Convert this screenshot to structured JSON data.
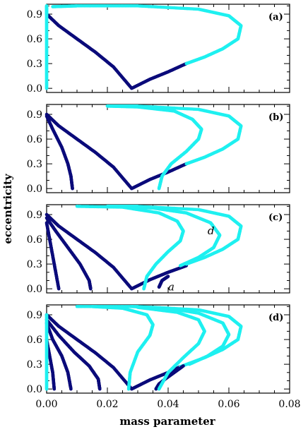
{
  "chart_data": {
    "type": "scatter",
    "xlabel": "mass parameter",
    "ylabel": "eccentricity",
    "xlim": [
      0,
      0.08
    ],
    "ylim": [
      -0.05,
      1.02
    ],
    "x_ticks": [
      "0.00",
      "0.02",
      "0.04",
      "0.06",
      "0.08"
    ],
    "y_ticks": [
      "0.0",
      "0.3",
      "0.6",
      "0.9"
    ],
    "colors": {
      "stable": "#0b0b7a",
      "unstable": "#1ff0f0"
    },
    "panels": [
      {
        "label": "(a)",
        "series": [
          {
            "color": "stable",
            "points": [
              [
                0.0,
                0.9
              ],
              [
                0.004,
                0.76
              ],
              [
                0.01,
                0.6
              ],
              [
                0.016,
                0.44
              ],
              [
                0.022,
                0.26
              ],
              [
                0.028,
                0.0
              ],
              [
                0.034,
                0.11
              ],
              [
                0.04,
                0.2
              ],
              [
                0.046,
                0.3
              ]
            ]
          },
          {
            "color": "unstable",
            "points": [
              [
                0.046,
                0.3
              ],
              [
                0.052,
                0.38
              ],
              [
                0.058,
                0.48
              ],
              [
                0.063,
                0.6
              ],
              [
                0.064,
                0.76
              ],
              [
                0.06,
                0.88
              ],
              [
                0.05,
                0.96
              ],
              [
                0.03,
                1.0
              ],
              [
                0.01,
                1.0
              ],
              [
                0.002,
                0.99
              ]
            ]
          },
          {
            "color": "unstable",
            "points": [
              [
                0.0,
                0.0
              ],
              [
                0.0,
                0.3
              ],
              [
                0.0,
                0.6
              ],
              [
                0.0,
                0.9
              ],
              [
                0.0,
                1.0
              ]
            ]
          }
        ],
        "annotations": []
      },
      {
        "label": "(b)",
        "series": [
          {
            "color": "stable",
            "points": [
              [
                0.0,
                0.9
              ],
              [
                0.004,
                0.76
              ],
              [
                0.01,
                0.6
              ],
              [
                0.016,
                0.44
              ],
              [
                0.022,
                0.26
              ],
              [
                0.028,
                0.0
              ],
              [
                0.034,
                0.11
              ],
              [
                0.04,
                0.2
              ],
              [
                0.046,
                0.3
              ]
            ]
          },
          {
            "color": "unstable",
            "points": [
              [
                0.046,
                0.3
              ],
              [
                0.052,
                0.38
              ],
              [
                0.058,
                0.48
              ],
              [
                0.063,
                0.6
              ],
              [
                0.064,
                0.76
              ],
              [
                0.06,
                0.88
              ],
              [
                0.05,
                0.96
              ],
              [
                0.03,
                1.0
              ],
              [
                0.02,
                1.0
              ]
            ]
          },
          {
            "color": "stable",
            "points": [
              [
                0.0,
                0.88
              ],
              [
                0.002,
                0.72
              ],
              [
                0.005,
                0.5
              ],
              [
                0.007,
                0.3
              ],
              [
                0.008,
                0.15
              ],
              [
                0.0085,
                0.0
              ]
            ]
          },
          {
            "color": "unstable",
            "points": [
              [
                0.037,
                0.0
              ],
              [
                0.038,
                0.15
              ],
              [
                0.041,
                0.3
              ],
              [
                0.046,
                0.45
              ],
              [
                0.05,
                0.6
              ],
              [
                0.051,
                0.72
              ],
              [
                0.048,
                0.84
              ],
              [
                0.042,
                0.94
              ],
              [
                0.03,
                0.99
              ],
              [
                0.02,
                1.0
              ]
            ]
          }
        ],
        "annotations": []
      },
      {
        "label": "(c)",
        "series": [
          {
            "color": "stable",
            "points": [
              [
                0.0,
                0.9
              ],
              [
                0.004,
                0.76
              ],
              [
                0.01,
                0.6
              ],
              [
                0.016,
                0.44
              ],
              [
                0.022,
                0.26
              ],
              [
                0.028,
                0.0
              ],
              [
                0.034,
                0.11
              ],
              [
                0.04,
                0.2
              ],
              [
                0.046,
                0.28
              ]
            ]
          },
          {
            "color": "unstable",
            "points": [
              [
                0.046,
                0.3
              ],
              [
                0.052,
                0.38
              ],
              [
                0.058,
                0.48
              ],
              [
                0.063,
                0.6
              ],
              [
                0.064,
                0.76
              ],
              [
                0.06,
                0.88
              ],
              [
                0.05,
                0.96
              ],
              [
                0.03,
                1.0
              ],
              [
                0.02,
                1.0
              ]
            ]
          },
          {
            "color": "stable",
            "points": [
              [
                0.0,
                0.86
              ],
              [
                0.003,
                0.7
              ],
              [
                0.007,
                0.5
              ],
              [
                0.011,
                0.3
              ],
              [
                0.014,
                0.1
              ],
              [
                0.0145,
                0.0
              ]
            ]
          },
          {
            "color": "stable",
            "points": [
              [
                0.0,
                0.8
              ],
              [
                0.001,
                0.6
              ],
              [
                0.002,
                0.4
              ],
              [
                0.003,
                0.2
              ],
              [
                0.004,
                0.0
              ]
            ]
          },
          {
            "color": "unstable",
            "points": [
              [
                0.032,
                0.0
              ],
              [
                0.033,
                0.15
              ],
              [
                0.036,
                0.3
              ],
              [
                0.04,
                0.45
              ],
              [
                0.044,
                0.58
              ],
              [
                0.045,
                0.7
              ],
              [
                0.043,
                0.82
              ],
              [
                0.037,
                0.92
              ],
              [
                0.025,
                0.99
              ],
              [
                0.01,
                1.0
              ]
            ]
          },
          {
            "color": "unstable",
            "points": [
              [
                0.044,
                0.28
              ],
              [
                0.05,
                0.38
              ],
              [
                0.055,
                0.5
              ],
              [
                0.057,
                0.65
              ],
              [
                0.054,
                0.8
              ],
              [
                0.046,
                0.92
              ],
              [
                0.035,
                0.98
              ],
              [
                0.02,
                1.0
              ]
            ]
          },
          {
            "color": "stable",
            "points": [
              [
                0.037,
                0.02
              ],
              [
                0.038,
                0.1
              ],
              [
                0.04,
                0.15
              ]
            ]
          }
        ],
        "annotations": [
          {
            "text": "d",
            "x": 0.053,
            "y": 0.66
          },
          {
            "text": "a",
            "x": 0.04,
            "y": -0.02
          }
        ]
      },
      {
        "label": "(d)",
        "series": [
          {
            "color": "stable",
            "points": [
              [
                0.0,
                0.9
              ],
              [
                0.004,
                0.76
              ],
              [
                0.01,
                0.6
              ],
              [
                0.016,
                0.44
              ],
              [
                0.022,
                0.26
              ],
              [
                0.028,
                0.0
              ],
              [
                0.034,
                0.11
              ],
              [
                0.04,
                0.2
              ],
              [
                0.044,
                0.27
              ]
            ]
          },
          {
            "color": "unstable",
            "points": [
              [
                0.044,
                0.27
              ],
              [
                0.052,
                0.38
              ],
              [
                0.058,
                0.48
              ],
              [
                0.063,
                0.6
              ],
              [
                0.064,
                0.76
              ],
              [
                0.06,
                0.88
              ],
              [
                0.05,
                0.96
              ],
              [
                0.03,
                1.0
              ],
              [
                0.01,
                1.0
              ]
            ]
          },
          {
            "color": "stable",
            "points": [
              [
                0.0,
                0.84
              ],
              [
                0.004,
                0.65
              ],
              [
                0.009,
                0.45
              ],
              [
                0.014,
                0.28
              ],
              [
                0.017,
                0.12
              ],
              [
                0.0175,
                0.0
              ]
            ]
          },
          {
            "color": "stable",
            "points": [
              [
                0.0,
                0.8
              ],
              [
                0.002,
                0.6
              ],
              [
                0.005,
                0.4
              ],
              [
                0.007,
                0.2
              ],
              [
                0.008,
                0.0
              ]
            ]
          },
          {
            "color": "stable",
            "points": [
              [
                0.0,
                0.6
              ],
              [
                0.001,
                0.4
              ],
              [
                0.002,
                0.2
              ],
              [
                0.0025,
                0.0
              ]
            ]
          },
          {
            "color": "stable",
            "points": [
              [
                0.036,
                0.0
              ],
              [
                0.037,
                0.06
              ],
              [
                0.039,
                0.12
              ],
              [
                0.042,
                0.2
              ],
              [
                0.045,
                0.28
              ]
            ]
          },
          {
            "color": "unstable",
            "points": [
              [
                0.027,
                0.0
              ],
              [
                0.0275,
                0.2
              ],
              [
                0.03,
                0.45
              ],
              [
                0.034,
                0.65
              ],
              [
                0.035,
                0.78
              ],
              [
                0.033,
                0.9
              ],
              [
                0.025,
                0.98
              ],
              [
                0.015,
                1.0
              ]
            ]
          },
          {
            "color": "unstable",
            "points": [
              [
                0.037,
                0.0
              ],
              [
                0.04,
                0.2
              ],
              [
                0.045,
                0.38
              ],
              [
                0.05,
                0.55
              ],
              [
                0.052,
                0.7
              ],
              [
                0.05,
                0.84
              ],
              [
                0.043,
                0.93
              ],
              [
                0.03,
                0.99
              ]
            ]
          },
          {
            "color": "unstable",
            "points": [
              [
                0.047,
                0.3
              ],
              [
                0.053,
                0.4
              ],
              [
                0.058,
                0.52
              ],
              [
                0.06,
                0.66
              ],
              [
                0.058,
                0.8
              ],
              [
                0.05,
                0.92
              ],
              [
                0.04,
                0.98
              ],
              [
                0.028,
                1.0
              ]
            ]
          },
          {
            "color": "unstable",
            "points": [
              [
                0.0,
                0.0
              ],
              [
                0.0,
                0.3
              ],
              [
                0.0,
                0.6
              ],
              [
                0.0,
                0.9
              ]
            ]
          }
        ],
        "annotations": []
      }
    ]
  }
}
